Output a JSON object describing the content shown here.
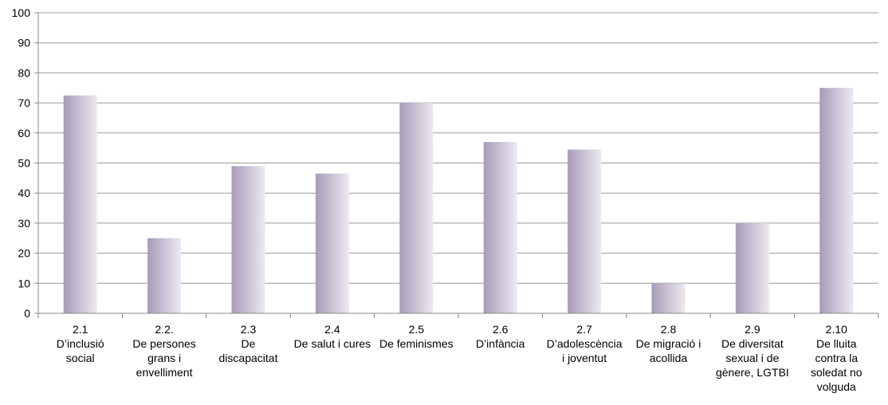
{
  "chart_data": {
    "type": "bar",
    "title": "",
    "xlabel": "",
    "ylabel": "",
    "ylim": [
      0,
      100
    ],
    "yticks": [
      0,
      10,
      20,
      30,
      40,
      50,
      60,
      70,
      80,
      90,
      100
    ],
    "grid": true,
    "legend": "none",
    "categories": [
      [
        "2.1",
        "D’inclusió",
        "social"
      ],
      [
        "2.2.",
        "De persones",
        "grans i",
        "envelliment"
      ],
      [
        "2.3",
        "De",
        "discapacitat"
      ],
      [
        "2.4",
        "De salut i cures"
      ],
      [
        "2.5",
        "De feminismes"
      ],
      [
        "2.6",
        "D’infància"
      ],
      [
        "2.7",
        "D’adolescència",
        "i joventut"
      ],
      [
        "2.8",
        "De migració i",
        "acollida"
      ],
      [
        "2.9",
        "De diversitat",
        "sexual i de",
        "gènere, LGTBI"
      ],
      [
        "2.10",
        "De lluita",
        "contra la",
        "soledat no",
        "volguda"
      ]
    ],
    "values": [
      72.5,
      25,
      49,
      46.5,
      70,
      57,
      54.5,
      10,
      30,
      75
    ],
    "colors": {
      "bar_dark": "#a89cb8",
      "bar_light": "#ece9f0",
      "grid": "#999999",
      "axis": "#888888"
    }
  }
}
